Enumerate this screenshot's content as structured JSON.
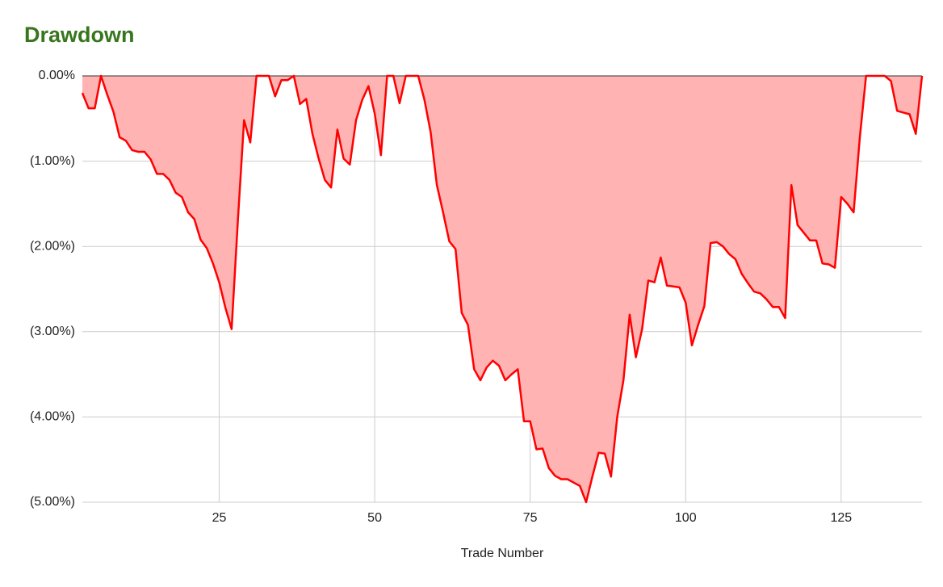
{
  "chart_data": {
    "type": "area",
    "title": "Drawdown",
    "x_label": "Trade Number",
    "x": [
      3,
      4,
      5,
      6,
      7,
      8,
      9,
      10,
      11,
      12,
      13,
      14,
      15,
      16,
      17,
      18,
      19,
      20,
      21,
      22,
      23,
      24,
      25,
      26,
      27,
      28,
      29,
      30,
      31,
      32,
      33,
      34,
      35,
      36,
      37,
      38,
      39,
      40,
      41,
      42,
      43,
      44,
      45,
      46,
      47,
      48,
      49,
      50,
      51,
      52,
      53,
      54,
      55,
      56,
      57,
      58,
      59,
      60,
      61,
      62,
      63,
      64,
      65,
      66,
      67,
      68,
      69,
      70,
      71,
      72,
      73,
      74,
      75,
      76,
      77,
      78,
      79,
      80,
      81,
      82,
      83,
      84,
      85,
      86,
      87,
      88,
      89,
      90,
      91,
      92,
      93,
      94,
      95,
      96,
      97,
      98,
      99,
      100,
      101,
      102,
      103,
      104,
      105,
      106,
      107,
      108,
      109,
      110,
      111,
      112,
      113,
      114,
      115,
      116,
      117,
      118,
      119,
      120,
      121,
      122,
      123,
      124,
      125,
      126,
      127,
      128,
      129,
      130,
      131,
      132,
      133,
      134,
      135,
      136,
      137,
      138
    ],
    "series": [
      {
        "name": "Drawdown",
        "color": "#ff0000",
        "fill": "#ffb3b3",
        "values": [
          -0.2,
          -0.38,
          -0.38,
          0,
          -0.22,
          -0.42,
          -0.72,
          -0.76,
          -0.87,
          -0.89,
          -0.89,
          -0.98,
          -1.15,
          -1.15,
          -1.22,
          -1.37,
          -1.42,
          -1.6,
          -1.68,
          -1.92,
          -2.02,
          -2.2,
          -2.42,
          -2.72,
          -2.97,
          -1.7,
          -0.52,
          -0.78,
          0,
          0,
          0,
          -0.24,
          -0.05,
          -0.05,
          0,
          -0.33,
          -0.27,
          -0.68,
          -0.97,
          -1.22,
          -1.31,
          -0.63,
          -0.97,
          -1.04,
          -0.52,
          -0.28,
          -0.12,
          -0.44,
          -0.93,
          0,
          0,
          -0.32,
          0,
          0,
          0,
          -0.28,
          -0.66,
          -1.28,
          -1.6,
          -1.94,
          -2.03,
          -2.78,
          -2.92,
          -3.44,
          -3.57,
          -3.42,
          -3.34,
          -3.4,
          -3.57,
          -3.5,
          -3.44,
          -4.05,
          -4.05,
          -4.38,
          -4.37,
          -4.6,
          -4.69,
          -4.73,
          -4.73,
          -4.77,
          -4.81,
          -5.0,
          -4.7,
          -4.42,
          -4.43,
          -4.7,
          -4.0,
          -3.57,
          -2.8,
          -3.3,
          -2.97,
          -2.4,
          -2.42,
          -2.13,
          -2.46,
          -2.47,
          -2.48,
          -2.66,
          -3.16,
          -2.92,
          -2.7,
          -1.96,
          -1.95,
          -2.0,
          -2.09,
          -2.15,
          -2.32,
          -2.43,
          -2.53,
          -2.55,
          -2.62,
          -2.71,
          -2.71,
          -2.84,
          -1.28,
          -1.75,
          -1.84,
          -1.93,
          -1.93,
          -2.2,
          -2.21,
          -2.25,
          -1.42,
          -1.5,
          -1.6,
          -0.72,
          0,
          0,
          0,
          0,
          -0.06,
          -0.41,
          -0.43,
          -0.45,
          -0.68,
          0
        ]
      }
    ],
    "xlim": [
      3,
      138
    ],
    "xticks": [
      25,
      50,
      75,
      100,
      125
    ],
    "ylim": [
      -5,
      0
    ],
    "yticks": [
      {
        "value": 0,
        "label": "0.00%"
      },
      {
        "value": -1,
        "label": "(1.00%)"
      },
      {
        "value": -2,
        "label": "(2.00%)"
      },
      {
        "value": -3,
        "label": "(3.00%)"
      },
      {
        "value": -4,
        "label": "(4.00%)"
      },
      {
        "value": -5,
        "label": "(5.00%)"
      }
    ],
    "grid": true
  }
}
